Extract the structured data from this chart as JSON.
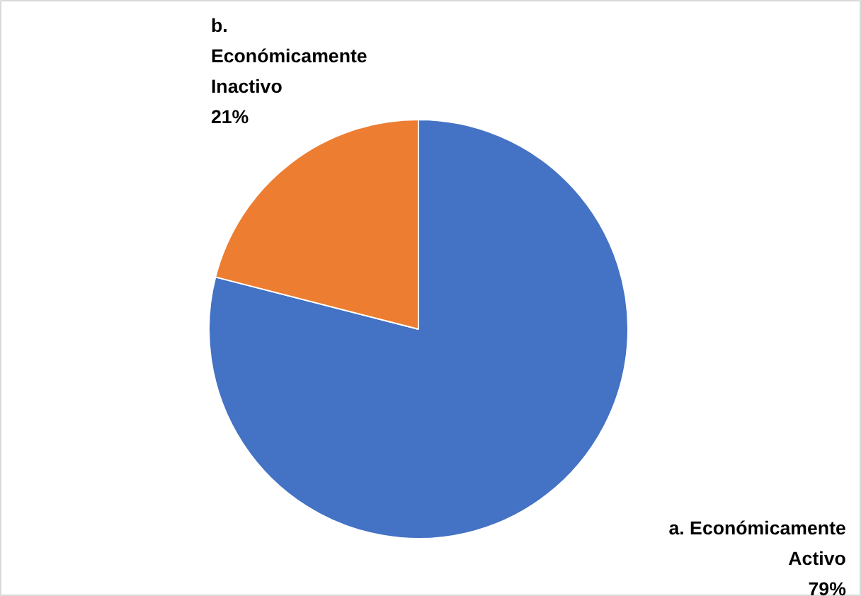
{
  "chart_data": {
    "type": "pie",
    "categories": [
      "a. Económicamente Activo",
      "b. Económicamente Inactivo"
    ],
    "values": [
      79,
      21
    ],
    "colors": [
      "#4472c4",
      "#ed7d31"
    ],
    "value_labels": [
      "79%",
      "21%"
    ]
  }
}
